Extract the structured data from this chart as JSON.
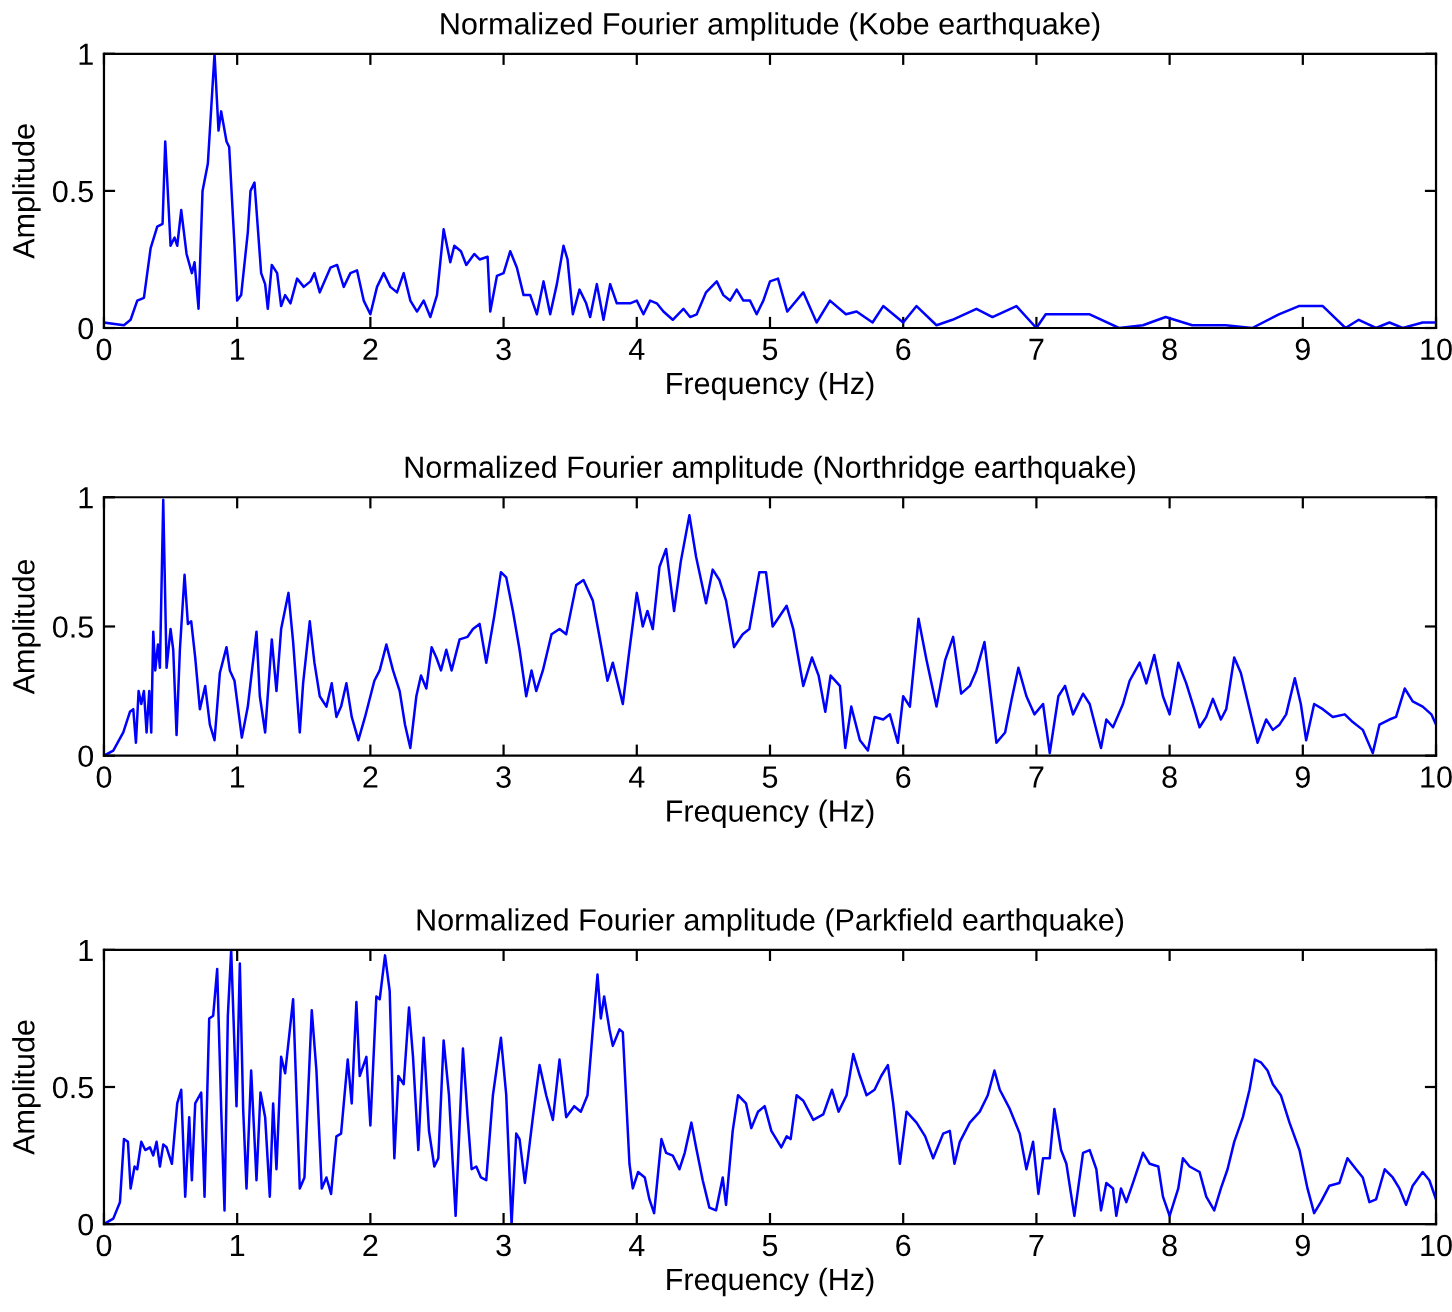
{
  "chart_data": [
    {
      "type": "line",
      "title": "Normalized Fourier amplitude (Kobe earthquake)",
      "xlabel": "Frequency (Hz)",
      "ylabel": "Amplitude",
      "xlim": [
        0,
        10
      ],
      "ylim": [
        0,
        1
      ],
      "xticks": [
        0,
        1,
        2,
        3,
        4,
        5,
        6,
        7,
        8,
        9,
        10
      ],
      "yticks": [
        0,
        0.5,
        1
      ],
      "grid": false,
      "x": [
        0,
        0.15,
        0.2,
        0.25,
        0.3,
        0.35,
        0.4,
        0.44,
        0.46,
        0.5,
        0.53,
        0.55,
        0.58,
        0.62,
        0.66,
        0.68,
        0.71,
        0.74,
        0.78,
        0.81,
        0.83,
        0.86,
        0.88,
        0.92,
        0.94,
        0.98,
        1.0,
        1.03,
        1.08,
        1.1,
        1.13,
        1.18,
        1.21,
        1.23,
        1.26,
        1.3,
        1.33,
        1.36,
        1.4,
        1.45,
        1.5,
        1.55,
        1.58,
        1.62,
        1.7,
        1.75,
        1.8,
        1.85,
        1.9,
        1.95,
        2.0,
        2.05,
        2.1,
        2.15,
        2.2,
        2.25,
        2.3,
        2.35,
        2.4,
        2.45,
        2.5,
        2.55,
        2.6,
        2.63,
        2.68,
        2.72,
        2.78,
        2.82,
        2.88,
        2.9,
        2.95,
        3.0,
        3.05,
        3.1,
        3.15,
        3.2,
        3.25,
        3.3,
        3.35,
        3.4,
        3.45,
        3.48,
        3.52,
        3.57,
        3.62,
        3.65,
        3.7,
        3.75,
        3.8,
        3.85,
        3.9,
        3.95,
        4.0,
        4.05,
        4.1,
        4.15,
        4.2,
        4.27,
        4.35,
        4.4,
        4.45,
        4.52,
        4.6,
        4.65,
        4.7,
        4.75,
        4.8,
        4.85,
        4.9,
        4.95,
        5.0,
        5.06,
        5.13,
        5.25,
        5.35,
        5.45,
        5.57,
        5.65,
        5.77,
        5.85,
        6.0,
        6.1,
        6.25,
        6.37,
        6.55,
        6.67,
        6.85,
        7.0,
        7.07,
        7.27,
        7.4,
        7.62,
        7.8,
        7.97,
        8.17,
        8.42,
        8.62,
        8.82,
        8.97,
        9.15,
        9.32,
        9.42,
        9.55,
        9.65,
        9.75,
        9.9,
        10.0
      ],
      "series": [
        {
          "color": "#0000ff",
          "values": [
            0.02,
            0.01,
            0.03,
            0.1,
            0.11,
            0.29,
            0.37,
            0.38,
            0.68,
            0.3,
            0.33,
            0.3,
            0.43,
            0.27,
            0.2,
            0.24,
            0.07,
            0.5,
            0.6,
            0.84,
            1.0,
            0.72,
            0.79,
            0.68,
            0.66,
            0.3,
            0.1,
            0.12,
            0.35,
            0.5,
            0.53,
            0.2,
            0.16,
            0.07,
            0.23,
            0.2,
            0.08,
            0.12,
            0.09,
            0.18,
            0.15,
            0.17,
            0.2,
            0.13,
            0.22,
            0.23,
            0.15,
            0.2,
            0.21,
            0.1,
            0.05,
            0.15,
            0.2,
            0.15,
            0.13,
            0.2,
            0.1,
            0.06,
            0.1,
            0.04,
            0.12,
            0.36,
            0.24,
            0.3,
            0.28,
            0.23,
            0.27,
            0.25,
            0.26,
            0.06,
            0.19,
            0.2,
            0.28,
            0.22,
            0.12,
            0.12,
            0.05,
            0.17,
            0.05,
            0.16,
            0.3,
            0.25,
            0.05,
            0.14,
            0.09,
            0.04,
            0.16,
            0.03,
            0.16,
            0.09,
            0.09,
            0.09,
            0.1,
            0.05,
            0.1,
            0.09,
            0.06,
            0.03,
            0.07,
            0.04,
            0.05,
            0.13,
            0.17,
            0.12,
            0.1,
            0.14,
            0.1,
            0.1,
            0.05,
            0.1,
            0.17,
            0.18,
            0.06,
            0.13,
            0.02,
            0.1,
            0.05,
            0.06,
            0.02,
            0.08,
            0.02,
            0.08,
            0.01,
            0.03,
            0.07,
            0.04,
            0.08,
            0.0,
            0.05,
            0.05,
            0.05,
            0.0,
            0.01,
            0.04,
            0.01,
            0.01,
            0.0,
            0.05,
            0.08,
            0.08,
            0.0,
            0.03,
            0.0,
            0.02,
            0.0,
            0.02,
            0.02
          ]
        }
      ]
    },
    {
      "type": "line",
      "title": "Normalized Fourier amplitude (Northridge earthquake)",
      "xlabel": "Frequency (Hz)",
      "ylabel": "Amplitude",
      "xlim": [
        0,
        10
      ],
      "ylim": [
        0,
        1
      ],
      "xticks": [
        0,
        1,
        2,
        3,
        4,
        5,
        6,
        7,
        8,
        9,
        10
      ],
      "yticks": [
        0,
        0.5,
        1
      ],
      "grid": false,
      "x": [
        0,
        0.07,
        0.145,
        0.195,
        0.22,
        0.24,
        0.26,
        0.28,
        0.3,
        0.32,
        0.34,
        0.355,
        0.37,
        0.385,
        0.405,
        0.42,
        0.445,
        0.47,
        0.5,
        0.52,
        0.545,
        0.57,
        0.605,
        0.63,
        0.655,
        0.685,
        0.72,
        0.76,
        0.795,
        0.83,
        0.87,
        0.92,
        0.945,
        0.98,
        1.035,
        1.08,
        1.145,
        1.17,
        1.21,
        1.26,
        1.295,
        1.33,
        1.385,
        1.42,
        1.47,
        1.495,
        1.545,
        1.58,
        1.62,
        1.67,
        1.71,
        1.745,
        1.78,
        1.82,
        1.86,
        1.91,
        1.96,
        2.03,
        2.07,
        2.12,
        2.17,
        2.22,
        2.26,
        2.3,
        2.345,
        2.38,
        2.42,
        2.46,
        2.495,
        2.53,
        2.57,
        2.61,
        2.67,
        2.73,
        2.77,
        2.82,
        2.87,
        2.93,
        2.98,
        3.02,
        3.07,
        3.12,
        3.17,
        3.21,
        3.245,
        3.295,
        3.36,
        3.42,
        3.47,
        3.545,
        3.6,
        3.67,
        3.72,
        3.78,
        3.82,
        3.895,
        3.945,
        4.0,
        4.045,
        4.08,
        4.12,
        4.17,
        4.22,
        4.28,
        4.33,
        4.395,
        4.445,
        4.52,
        4.57,
        4.62,
        4.67,
        4.73,
        4.795,
        4.845,
        4.92,
        4.97,
        5.02,
        5.125,
        5.175,
        5.25,
        5.315,
        5.365,
        5.415,
        5.455,
        5.525,
        5.565,
        5.61,
        5.675,
        5.735,
        5.785,
        5.85,
        5.9,
        5.96,
        6.0,
        6.05,
        6.115,
        6.175,
        6.25,
        6.315,
        6.375,
        6.435,
        6.5,
        6.55,
        6.61,
        6.7,
        6.765,
        6.815,
        6.865,
        6.925,
        6.985,
        7.05,
        7.1,
        7.165,
        7.215,
        7.275,
        7.35,
        7.4,
        7.485,
        7.525,
        7.575,
        7.65,
        7.7,
        7.775,
        7.825,
        7.885,
        7.95,
        8.0,
        8.065,
        8.125,
        8.185,
        8.225,
        8.275,
        8.325,
        8.385,
        8.425,
        8.485,
        8.535,
        8.6,
        8.66,
        8.725,
        8.775,
        8.825,
        8.875,
        8.94,
        8.985,
        9.025,
        9.085,
        9.15,
        9.225,
        9.315,
        9.375,
        9.45,
        9.525,
        9.575,
        9.65,
        9.7,
        9.765,
        9.825,
        9.9,
        9.965,
        10.0
      ],
      "series": [
        {
          "color": "#0000ff",
          "values": [
            0,
            0.02,
            0.09,
            0.17,
            0.18,
            0.05,
            0.25,
            0.2,
            0.25,
            0.09,
            0.25,
            0.09,
            0.48,
            0.33,
            0.43,
            0.34,
            0.99,
            0.34,
            0.49,
            0.41,
            0.08,
            0.41,
            0.7,
            0.51,
            0.52,
            0.38,
            0.18,
            0.27,
            0.12,
            0.06,
            0.32,
            0.42,
            0.33,
            0.29,
            0.07,
            0.19,
            0.48,
            0.23,
            0.09,
            0.45,
            0.25,
            0.49,
            0.63,
            0.44,
            0.09,
            0.28,
            0.52,
            0.36,
            0.23,
            0.19,
            0.28,
            0.15,
            0.19,
            0.28,
            0.15,
            0.06,
            0.15,
            0.29,
            0.33,
            0.43,
            0.33,
            0.25,
            0.12,
            0.03,
            0.23,
            0.31,
            0.26,
            0.42,
            0.38,
            0.33,
            0.41,
            0.33,
            0.45,
            0.46,
            0.49,
            0.51,
            0.36,
            0.54,
            0.71,
            0.69,
            0.56,
            0.41,
            0.23,
            0.33,
            0.25,
            0.33,
            0.47,
            0.49,
            0.47,
            0.66,
            0.68,
            0.6,
            0.46,
            0.29,
            0.36,
            0.2,
            0.41,
            0.63,
            0.5,
            0.56,
            0.49,
            0.73,
            0.8,
            0.56,
            0.75,
            0.93,
            0.77,
            0.59,
            0.72,
            0.68,
            0.6,
            0.42,
            0.47,
            0.49,
            0.71,
            0.71,
            0.5,
            0.58,
            0.49,
            0.27,
            0.38,
            0.31,
            0.17,
            0.31,
            0.27,
            0.03,
            0.19,
            0.06,
            0.02,
            0.15,
            0.14,
            0.16,
            0.05,
            0.23,
            0.19,
            0.53,
            0.37,
            0.19,
            0.37,
            0.46,
            0.24,
            0.27,
            0.33,
            0.44,
            0.05,
            0.09,
            0.22,
            0.34,
            0.23,
            0.16,
            0.2,
            0.01,
            0.23,
            0.27,
            0.16,
            0.24,
            0.2,
            0.03,
            0.14,
            0.11,
            0.2,
            0.29,
            0.36,
            0.28,
            0.39,
            0.23,
            0.16,
            0.36,
            0.28,
            0.18,
            0.11,
            0.15,
            0.22,
            0.14,
            0.18,
            0.38,
            0.32,
            0.18,
            0.05,
            0.14,
            0.1,
            0.12,
            0.16,
            0.3,
            0.2,
            0.06,
            0.2,
            0.18,
            0.15,
            0.16,
            0.13,
            0.1,
            0.01,
            0.12,
            0.14,
            0.15,
            0.26,
            0.21,
            0.19,
            0.16,
            0.12
          ]
        }
      ]
    },
    {
      "type": "line",
      "title": "Normalized Fourier amplitude (Parkfield earthquake)",
      "xlabel": "Frequency (Hz)",
      "ylabel": "Amplitude",
      "xlim": [
        0,
        10
      ],
      "ylim": [
        0,
        1
      ],
      "xticks": [
        0,
        1,
        2,
        3,
        4,
        5,
        6,
        7,
        8,
        9,
        10
      ],
      "yticks": [
        0,
        0.5,
        1
      ],
      "grid": false,
      "x": [
        0,
        0.07,
        0.12,
        0.15,
        0.18,
        0.2,
        0.23,
        0.25,
        0.28,
        0.31,
        0.345,
        0.37,
        0.395,
        0.42,
        0.445,
        0.47,
        0.51,
        0.55,
        0.58,
        0.61,
        0.64,
        0.66,
        0.685,
        0.73,
        0.755,
        0.79,
        0.82,
        0.85,
        0.88,
        0.905,
        0.93,
        0.955,
        0.995,
        1.02,
        1.045,
        1.07,
        1.105,
        1.145,
        1.175,
        1.21,
        1.245,
        1.27,
        1.295,
        1.33,
        1.36,
        1.42,
        1.47,
        1.505,
        1.56,
        1.595,
        1.635,
        1.67,
        1.705,
        1.745,
        1.78,
        1.83,
        1.86,
        1.895,
        1.92,
        1.97,
        2.0,
        2.045,
        2.07,
        2.11,
        2.145,
        2.18,
        2.21,
        2.25,
        2.29,
        2.32,
        2.36,
        2.4,
        2.44,
        2.48,
        2.51,
        2.55,
        2.59,
        2.64,
        2.695,
        2.73,
        2.76,
        2.795,
        2.83,
        2.87,
        2.92,
        2.98,
        3.02,
        3.06,
        3.095,
        3.12,
        3.16,
        3.22,
        3.27,
        3.32,
        3.37,
        3.42,
        3.47,
        3.53,
        3.58,
        3.63,
        3.67,
        3.705,
        3.73,
        3.755,
        3.795,
        3.82,
        3.87,
        3.895,
        3.945,
        3.97,
        4.01,
        4.06,
        4.095,
        4.13,
        4.185,
        4.22,
        4.27,
        4.32,
        4.36,
        4.41,
        4.445,
        4.495,
        4.545,
        4.595,
        4.645,
        4.67,
        4.72,
        4.76,
        4.82,
        4.86,
        4.91,
        4.96,
        5.01,
        5.085,
        5.125,
        5.155,
        5.2,
        5.25,
        5.325,
        5.4,
        5.465,
        5.515,
        5.575,
        5.625,
        5.675,
        5.725,
        5.785,
        5.835,
        5.885,
        5.925,
        5.975,
        6.025,
        6.1,
        6.165,
        6.225,
        6.3,
        6.35,
        6.385,
        6.425,
        6.5,
        6.575,
        6.635,
        6.685,
        6.725,
        6.8,
        6.875,
        6.925,
        6.975,
        7.015,
        7.05,
        7.1,
        7.135,
        7.185,
        7.225,
        7.285,
        7.35,
        7.4,
        7.45,
        7.485,
        7.525,
        7.575,
        7.6,
        7.635,
        7.675,
        7.725,
        7.8,
        7.85,
        7.915,
        7.95,
        8.0,
        8.065,
        8.1,
        8.15,
        8.225,
        8.275,
        8.335,
        8.385,
        8.435,
        8.485,
        8.55,
        8.6,
        8.64,
        8.685,
        8.735,
        8.775,
        8.835,
        8.9,
        8.975,
        9.035,
        9.085,
        9.135,
        9.2,
        9.275,
        9.335,
        9.4,
        9.45,
        9.5,
        9.55,
        9.615,
        9.675,
        9.725,
        9.775,
        9.825,
        9.9,
        9.95,
        10.0
      ],
      "series": [
        {
          "color": "#0000ff",
          "values": [
            0,
            0.02,
            0.08,
            0.31,
            0.3,
            0.13,
            0.21,
            0.2,
            0.3,
            0.27,
            0.28,
            0.25,
            0.3,
            0.21,
            0.29,
            0.28,
            0.22,
            0.44,
            0.49,
            0.1,
            0.39,
            0.16,
            0.44,
            0.48,
            0.1,
            0.75,
            0.76,
            0.93,
            0.42,
            0.05,
            0.76,
            1.0,
            0.43,
            0.95,
            0.42,
            0.13,
            0.56,
            0.16,
            0.48,
            0.39,
            0.1,
            0.44,
            0.2,
            0.61,
            0.55,
            0.82,
            0.13,
            0.17,
            0.78,
            0.56,
            0.13,
            0.17,
            0.11,
            0.32,
            0.33,
            0.6,
            0.44,
            0.81,
            0.54,
            0.61,
            0.36,
            0.83,
            0.82,
            0.98,
            0.85,
            0.24,
            0.54,
            0.51,
            0.79,
            0.61,
            0.27,
            0.68,
            0.34,
            0.21,
            0.24,
            0.67,
            0.47,
            0.03,
            0.64,
            0.39,
            0.2,
            0.21,
            0.17,
            0.16,
            0.47,
            0.68,
            0.47,
            0.0,
            0.33,
            0.31,
            0.15,
            0.39,
            0.58,
            0.47,
            0.38,
            0.6,
            0.39,
            0.43,
            0.41,
            0.47,
            0.71,
            0.91,
            0.75,
            0.83,
            0.71,
            0.65,
            0.71,
            0.7,
            0.22,
            0.13,
            0.19,
            0.17,
            0.09,
            0.04,
            0.31,
            0.26,
            0.25,
            0.2,
            0.26,
            0.37,
            0.28,
            0.16,
            0.06,
            0.05,
            0.17,
            0.07,
            0.34,
            0.47,
            0.44,
            0.35,
            0.41,
            0.43,
            0.34,
            0.28,
            0.32,
            0.31,
            0.47,
            0.45,
            0.38,
            0.4,
            0.49,
            0.41,
            0.47,
            0.62,
            0.54,
            0.47,
            0.49,
            0.54,
            0.58,
            0.44,
            0.22,
            0.41,
            0.37,
            0.32,
            0.24,
            0.33,
            0.34,
            0.22,
            0.3,
            0.37,
            0.41,
            0.47,
            0.56,
            0.49,
            0.42,
            0.33,
            0.2,
            0.3,
            0.11,
            0.24,
            0.24,
            0.42,
            0.27,
            0.22,
            0.03,
            0.26,
            0.27,
            0.2,
            0.05,
            0.15,
            0.13,
            0.03,
            0.13,
            0.08,
            0.15,
            0.26,
            0.22,
            0.21,
            0.1,
            0.03,
            0.13,
            0.24,
            0.21,
            0.19,
            0.1,
            0.05,
            0.13,
            0.2,
            0.3,
            0.39,
            0.49,
            0.6,
            0.59,
            0.56,
            0.51,
            0.47,
            0.37,
            0.27,
            0.13,
            0.04,
            0.08,
            0.14,
            0.15,
            0.24,
            0.2,
            0.17,
            0.08,
            0.09,
            0.2,
            0.17,
            0.13,
            0.07,
            0.14,
            0.19,
            0.16,
            0.09
          ]
        }
      ]
    }
  ]
}
